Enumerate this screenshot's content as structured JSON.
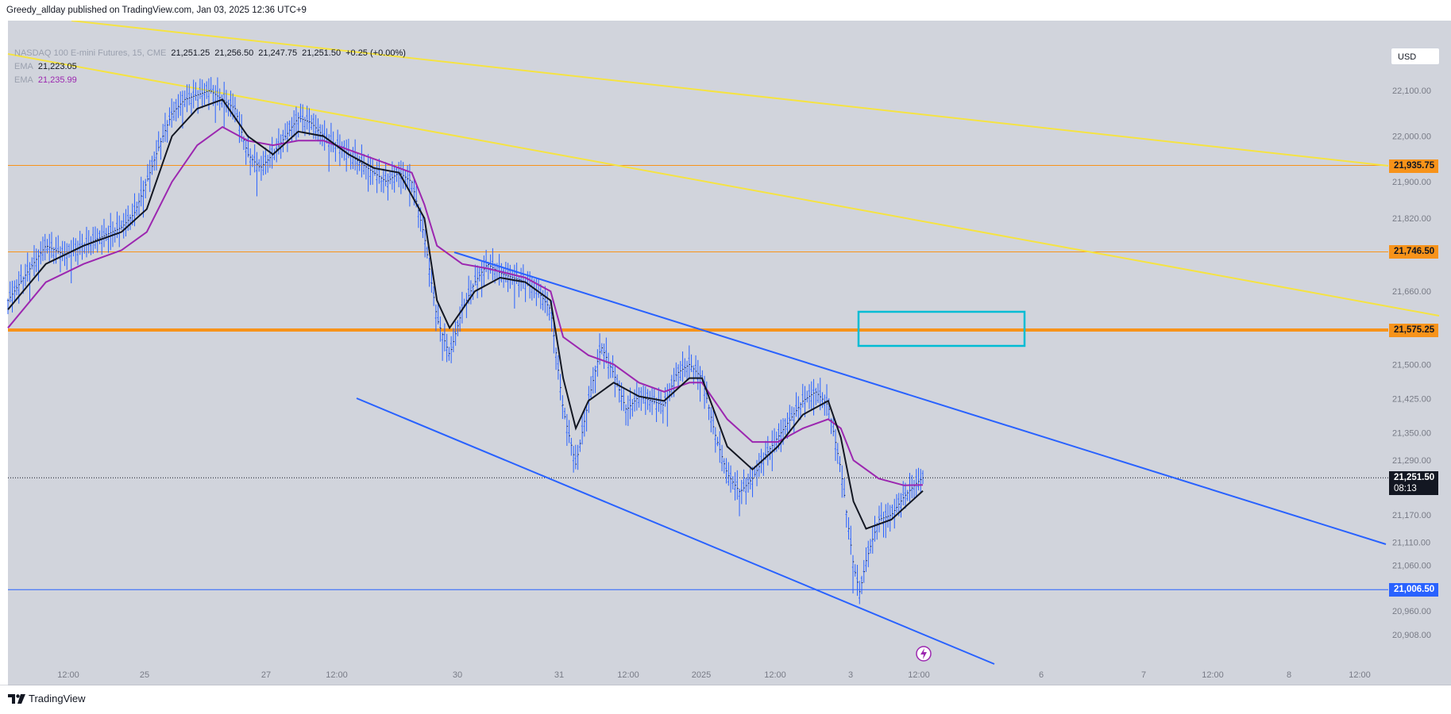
{
  "header": {
    "publisher_text": "Greedy_allday published on TradingView.com, Jan 03, 2025 12:36 UTC+9"
  },
  "legend": {
    "symbol": "NASDAQ 100 E-mini Futures, 15, CME",
    "open": "21,251.25",
    "high": "21,256.50",
    "low": "21,247.75",
    "close": "21,251.50",
    "change": "+0.25 (+0.00%)",
    "ema1_label": "EMA",
    "ema1_value": "21,223.05",
    "ema2_label": "EMA",
    "ema2_value": "21,235.99"
  },
  "toolbar": {
    "currency": "USD"
  },
  "footer": {
    "brand": "TradingView"
  },
  "colors": {
    "background": "#d1d4dc",
    "candle": "#2962ff",
    "ema_fast": "#131722",
    "ema_slow": "#9c27b0",
    "horizontal_orange": "#f7931a",
    "trendline_yellow": "#f5e342",
    "channel_blue": "#2962ff",
    "rect_cyan": "#00bcd4"
  },
  "chart_data": {
    "type": "candlestick",
    "symbol": "NASDAQ 100 E-mini Futures",
    "interval": "15",
    "exchange": "CME",
    "x_tick_labels": [
      "12:00",
      "25",
      "27",
      "12:00",
      "30",
      "31",
      "12:00",
      "2025",
      "12:00",
      "3",
      "12:00",
      "6",
      "7",
      "12:00",
      "8",
      "12:00"
    ],
    "y_tick_labels": [
      "22,100.00",
      "22,000.00",
      "21,900.00",
      "21,820.00",
      "21,660.00",
      "21,500.00",
      "21,425.00",
      "21,350.00",
      "21,290.00",
      "21,170.00",
      "21,110.00",
      "21,060.00",
      "20,960.00",
      "20,908.00"
    ],
    "price_labels": [
      {
        "value": "21,935.75",
        "color": "#f7931a"
      },
      {
        "value": "21,746.50",
        "color": "#f7931a"
      },
      {
        "value": "21,575.25",
        "color": "#f7931a"
      },
      {
        "value": "21,251.50",
        "sub": "08:13",
        "color": "#131722"
      },
      {
        "value": "21,006.50",
        "color": "#2962ff"
      }
    ],
    "horizontal_lines": [
      {
        "price": 21935.75,
        "color": "#f7931a",
        "style": "thin"
      },
      {
        "price": 21746.5,
        "color": "#f7931a",
        "style": "thin"
      },
      {
        "price": 21575.25,
        "color": "#f7931a",
        "style": "thick"
      },
      {
        "price": 21251.5,
        "color": "#131722",
        "style": "dotted"
      },
      {
        "price": 21006.5,
        "color": "#2962ff",
        "style": "thin"
      }
    ],
    "close_path": [
      [
        0,
        21640
      ],
      [
        3,
        21700
      ],
      [
        6,
        21760
      ],
      [
        9,
        21740
      ],
      [
        12,
        21760
      ],
      [
        15,
        21780
      ],
      [
        18,
        21800
      ],
      [
        20,
        21830
      ],
      [
        22,
        21900
      ],
      [
        24,
        21980
      ],
      [
        26,
        22050
      ],
      [
        28,
        22080
      ],
      [
        30,
        22090
      ],
      [
        32,
        22100
      ],
      [
        34,
        22080
      ],
      [
        36,
        22060
      ],
      [
        38,
        21960
      ],
      [
        40,
        21930
      ],
      [
        42,
        21960
      ],
      [
        44,
        22000
      ],
      [
        46,
        22040
      ],
      [
        48,
        22030
      ],
      [
        50,
        22000
      ],
      [
        52,
        21980
      ],
      [
        54,
        21960
      ],
      [
        56,
        21940
      ],
      [
        58,
        21920
      ],
      [
        60,
        21900
      ],
      [
        62,
        21920
      ],
      [
        64,
        21900
      ],
      [
        66,
        21780
      ],
      [
        68,
        21600
      ],
      [
        70,
        21520
      ],
      [
        72,
        21620
      ],
      [
        74,
        21680
      ],
      [
        76,
        21720
      ],
      [
        78,
        21700
      ],
      [
        80,
        21690
      ],
      [
        82,
        21680
      ],
      [
        84,
        21660
      ],
      [
        86,
        21620
      ],
      [
        88,
        21400
      ],
      [
        90,
        21280
      ],
      [
        92,
        21420
      ],
      [
        94,
        21540
      ],
      [
        96,
        21480
      ],
      [
        98,
        21400
      ],
      [
        100,
        21430
      ],
      [
        102,
        21420
      ],
      [
        104,
        21410
      ],
      [
        106,
        21480
      ],
      [
        108,
        21500
      ],
      [
        110,
        21470
      ],
      [
        112,
        21350
      ],
      [
        114,
        21260
      ],
      [
        116,
        21220
      ],
      [
        118,
        21250
      ],
      [
        120,
        21300
      ],
      [
        122,
        21340
      ],
      [
        124,
        21380
      ],
      [
        126,
        21420
      ],
      [
        128,
        21440
      ],
      [
        130,
        21410
      ],
      [
        132,
        21270
      ],
      [
        134,
        21060
      ],
      [
        135,
        21000
      ],
      [
        136,
        21070
      ],
      [
        138,
        21160
      ],
      [
        140,
        21170
      ],
      [
        142,
        21210
      ],
      [
        144,
        21240
      ],
      [
        145,
        21251.5
      ]
    ],
    "ema_fast_path": [
      [
        0,
        21620
      ],
      [
        6,
        21720
      ],
      [
        12,
        21760
      ],
      [
        18,
        21790
      ],
      [
        22,
        21840
      ],
      [
        26,
        22000
      ],
      [
        30,
        22060
      ],
      [
        34,
        22080
      ],
      [
        38,
        22000
      ],
      [
        42,
        21960
      ],
      [
        46,
        22010
      ],
      [
        50,
        22000
      ],
      [
        54,
        21960
      ],
      [
        58,
        21930
      ],
      [
        62,
        21920
      ],
      [
        66,
        21820
      ],
      [
        68,
        21640
      ],
      [
        70,
        21580
      ],
      [
        74,
        21660
      ],
      [
        78,
        21690
      ],
      [
        82,
        21680
      ],
      [
        86,
        21640
      ],
      [
        88,
        21470
      ],
      [
        90,
        21360
      ],
      [
        92,
        21420
      ],
      [
        96,
        21460
      ],
      [
        100,
        21430
      ],
      [
        104,
        21420
      ],
      [
        108,
        21470
      ],
      [
        110,
        21470
      ],
      [
        114,
        21320
      ],
      [
        118,
        21270
      ],
      [
        122,
        21320
      ],
      [
        126,
        21390
      ],
      [
        130,
        21420
      ],
      [
        132,
        21340
      ],
      [
        134,
        21200
      ],
      [
        136,
        21140
      ],
      [
        140,
        21160
      ],
      [
        145,
        21223.05
      ]
    ],
    "ema_slow_path": [
      [
        0,
        21580
      ],
      [
        6,
        21680
      ],
      [
        12,
        21720
      ],
      [
        18,
        21750
      ],
      [
        22,
        21790
      ],
      [
        26,
        21900
      ],
      [
        30,
        21980
      ],
      [
        34,
        22020
      ],
      [
        38,
        21990
      ],
      [
        42,
        21980
      ],
      [
        46,
        21990
      ],
      [
        50,
        21990
      ],
      [
        54,
        21970
      ],
      [
        58,
        21950
      ],
      [
        62,
        21930
      ],
      [
        64,
        21920
      ],
      [
        66,
        21850
      ],
      [
        68,
        21760
      ],
      [
        72,
        21720
      ],
      [
        76,
        21710
      ],
      [
        82,
        21690
      ],
      [
        86,
        21660
      ],
      [
        88,
        21560
      ],
      [
        92,
        21520
      ],
      [
        96,
        21500
      ],
      [
        100,
        21460
      ],
      [
        104,
        21440
      ],
      [
        108,
        21460
      ],
      [
        110,
        21460
      ],
      [
        114,
        21380
      ],
      [
        118,
        21330
      ],
      [
        122,
        21330
      ],
      [
        126,
        21360
      ],
      [
        130,
        21380
      ],
      [
        132,
        21360
      ],
      [
        134,
        21290
      ],
      [
        138,
        21250
      ],
      [
        142,
        21235
      ],
      [
        145,
        21235.99
      ]
    ]
  }
}
